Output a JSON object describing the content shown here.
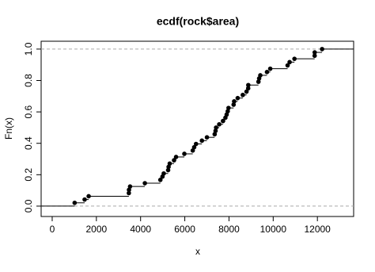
{
  "chart_data": {
    "type": "ecdf",
    "title": "ecdf(rock$area)",
    "x_label": "x",
    "y_label": "Fn(x)",
    "x": [
      1016,
      1468,
      1651,
      3469,
      3475,
      3524,
      4193,
      4895,
      4990,
      5048,
      5246,
      5267,
      5318,
      5514,
      5605,
      5980,
      6360,
      6425,
      6509,
      6775,
      7002,
      7352,
      7392,
      7416,
      7558,
      7728,
      7838,
      7894,
      7943,
      7979,
      8209,
      8233,
      8393,
      8624,
      8793,
      8868,
      8874,
      9333,
      9364,
      9417,
      9718,
      9867,
      10651,
      10743,
      10962,
      11876,
      11878,
      12212
    ],
    "values": [
      0.021,
      0.042,
      0.063,
      0.083,
      0.104,
      0.125,
      0.146,
      0.167,
      0.188,
      0.208,
      0.229,
      0.25,
      0.271,
      0.292,
      0.313,
      0.333,
      0.354,
      0.375,
      0.396,
      0.417,
      0.438,
      0.458,
      0.479,
      0.5,
      0.521,
      0.542,
      0.563,
      0.583,
      0.604,
      0.625,
      0.646,
      0.667,
      0.688,
      0.708,
      0.729,
      0.75,
      0.771,
      0.792,
      0.813,
      0.833,
      0.854,
      0.875,
      0.896,
      0.917,
      0.938,
      0.958,
      0.979,
      1
    ],
    "color": "#000000",
    "xlim": [
      -500,
      13640
    ],
    "xticks": [
      0,
      2000,
      4000,
      6000,
      8000,
      10000,
      12000
    ],
    "ylim": [
      -0.066,
      1.05
    ],
    "yticks": [
      {
        "value": 0,
        "label": "0.0"
      },
      0.2,
      0.4,
      0.6,
      0.8,
      {
        "value": 1,
        "label": "1.0"
      }
    ],
    "hlines": [
      0,
      1
    ]
  }
}
